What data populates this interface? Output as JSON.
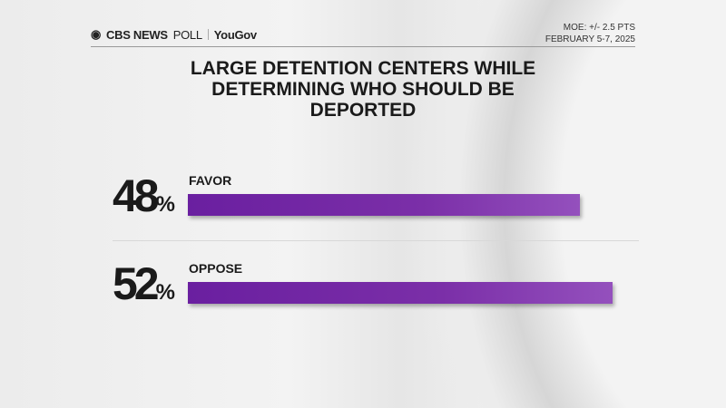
{
  "header": {
    "brand": "CBS NEWS",
    "poll": "POLL",
    "partner": "YouGov",
    "moe": "MOE: +/- 2.5 PTS",
    "dates": "FEBRUARY 5-7, 2025"
  },
  "chart_data": {
    "type": "bar",
    "title": "LARGE DETENTION CENTERS WHILE DETERMINING WHO SHOULD BE DEPORTED",
    "categories": [
      "FAVOR",
      "OPPOSE"
    ],
    "values": [
      48,
      52
    ],
    "value_labels": [
      "48",
      "52"
    ],
    "unit": "%",
    "colors": {
      "bar": "#7b2fa8"
    },
    "xlim": [
      0,
      100
    ]
  }
}
